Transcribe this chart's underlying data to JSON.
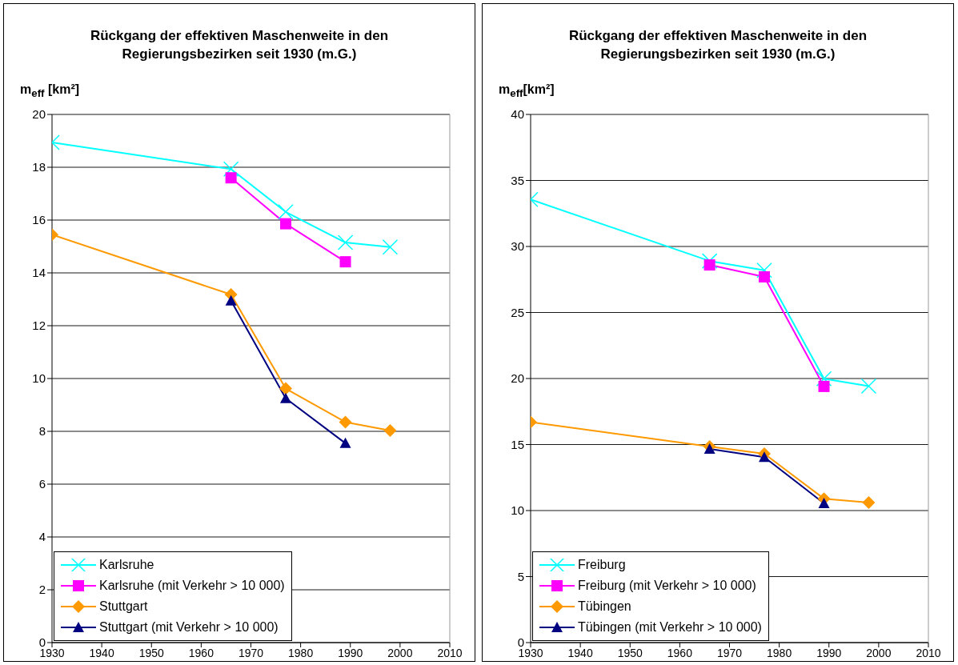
{
  "chart_data": [
    {
      "type": "line",
      "title": "Rückgang der effektiven Maschenweite in den Regierungsbezirken seit 1930 (m.G.)",
      "ylabel": "m$_{eff}$ [km²]",
      "x": [
        1930,
        1966,
        1977,
        1989,
        1998
      ],
      "xlim": [
        1930,
        2010
      ],
      "xticks": [
        1930,
        1940,
        1950,
        1960,
        1970,
        1980,
        1990,
        2000,
        2010
      ],
      "ylim": [
        0,
        20
      ],
      "yticks": [
        0,
        2,
        4,
        6,
        8,
        10,
        12,
        14,
        16,
        18,
        20
      ],
      "grid": "y",
      "legend": "bottom left",
      "series": [
        {
          "name": "Karlsruhe",
          "color": "#00ffff",
          "marker": "cross",
          "values": [
            18.94,
            17.93,
            16.31,
            15.15,
            14.98
          ]
        },
        {
          "name": "Karlsruhe (mit Verkehr > 10 000)",
          "color": "#ff00ff",
          "marker": "square",
          "values": [
            null,
            17.6,
            15.86,
            14.42,
            null
          ]
        },
        {
          "name": "Stuttgart",
          "color": "#ff9900",
          "marker": "diamond",
          "values": [
            15.45,
            13.18,
            9.62,
            8.35,
            8.03
          ]
        },
        {
          "name": "Stuttgart (mit Verkehr > 10 000)",
          "color": "#000080",
          "marker": "triangle",
          "values": [
            null,
            12.95,
            9.25,
            7.55,
            null
          ]
        }
      ]
    },
    {
      "type": "line",
      "title": "Rückgang der effektiven Maschenweite in den Regierungsbezirken seit 1930 (m.G.)",
      "ylabel": "m$_{eff}$[km²]",
      "x": [
        1930,
        1966,
        1977,
        1989,
        1998
      ],
      "xlim": [
        1930,
        2010
      ],
      "xticks": [
        1930,
        1940,
        1950,
        1960,
        1970,
        1980,
        1990,
        2000,
        2010
      ],
      "ylim": [
        0,
        40
      ],
      "yticks": [
        0,
        5,
        10,
        15,
        20,
        25,
        30,
        35,
        40
      ],
      "grid": "y",
      "legend": "bottom left",
      "series": [
        {
          "name": "Freiburg",
          "color": "#00ffff",
          "marker": "cross",
          "values": [
            33.56,
            28.9,
            28.2,
            19.98,
            19.42
          ]
        },
        {
          "name": "Freiburg (mit Verkehr > 10 000)",
          "color": "#ff00ff",
          "marker": "square",
          "values": [
            null,
            28.6,
            27.7,
            19.4,
            null
          ]
        },
        {
          "name": "Tübingen",
          "color": "#ff9900",
          "marker": "diamond",
          "values": [
            16.7,
            14.85,
            14.3,
            10.9,
            10.6
          ]
        },
        {
          "name": "Tübingen (mit Verkehr > 10 000)",
          "color": "#000080",
          "marker": "triangle",
          "values": [
            null,
            14.67,
            14.05,
            10.55,
            null
          ]
        }
      ]
    }
  ]
}
